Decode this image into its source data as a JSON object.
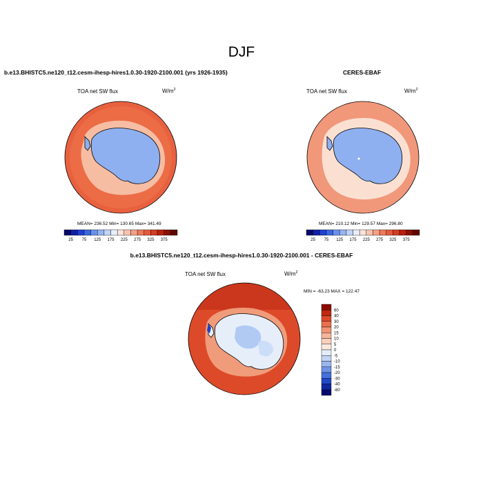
{
  "title": "DJF",
  "panels": [
    {
      "title": "b.e13.BHISTC5.ne120_t12.cesm-ihesp-hires1.0.30-1920-2100.001 (yrs 1926-1935)",
      "variable": "TOA net SW flux",
      "units_base": "W/m",
      "units_exp": "2",
      "stats": "MEAN= 236.52  Min= 130.65  Max= 341.49"
    },
    {
      "title": "CERES-EBAF",
      "variable": "TOA net SW flux",
      "units_base": "W/m",
      "units_exp": "2",
      "stats": "MEAN= 210.12  Min= 129.57  Max= 296.80"
    },
    {
      "title": "b.e13.BHISTC5.ne120_t12.cesm-ihesp-hires1.0.30-1920-2100.001 - CERES-EBAF",
      "variable": "TOA net SW flux",
      "units_base": "W/m",
      "units_exp": "2",
      "stats": "MIN = -63.23  MAX = 122.47"
    }
  ],
  "colorbar_abs": {
    "labels": [
      "25",
      "75",
      "125",
      "175",
      "225",
      "275",
      "325",
      "375"
    ],
    "colors": [
      "#08086a",
      "#1020a8",
      "#2040d0",
      "#3a66e0",
      "#6a90ea",
      "#96b4f2",
      "#c0d4f8",
      "#e8eefa",
      "#fbe4da",
      "#f8c4ae",
      "#f4a084",
      "#ee7a5a",
      "#e45a3c",
      "#d63c22",
      "#b8200e",
      "#8a1000",
      "#600800"
    ]
  },
  "colorbar_diff": {
    "labels": [
      "60",
      "40",
      "30",
      "20",
      "15",
      "10",
      "5",
      "0",
      "-5",
      "-10",
      "-15",
      "-20",
      "-30",
      "-40",
      "-60"
    ],
    "colors": [
      "#8c0a00",
      "#c02810",
      "#dd4a2a",
      "#e9704e",
      "#f19473",
      "#f6b49b",
      "#f9d0bd",
      "#fbe8de",
      "#e4ecfa",
      "#c2d4f6",
      "#9ab6f0",
      "#6e92e6",
      "#4470dc",
      "#2048c8",
      "#1028a0",
      "#080a70"
    ]
  },
  "colors": {
    "ocean_model": "#ec6c46",
    "ocean_outer_model": "#e65a38",
    "sea_ice_zone_model": "#f8cbb4",
    "antarctica": "#8fb0f0",
    "ocean_obs": "#f1987a",
    "sea_ice_zone_obs": "#fbe0d2",
    "diff_ocean": "#dd4a2a",
    "diff_land": "#e6eefa"
  }
}
